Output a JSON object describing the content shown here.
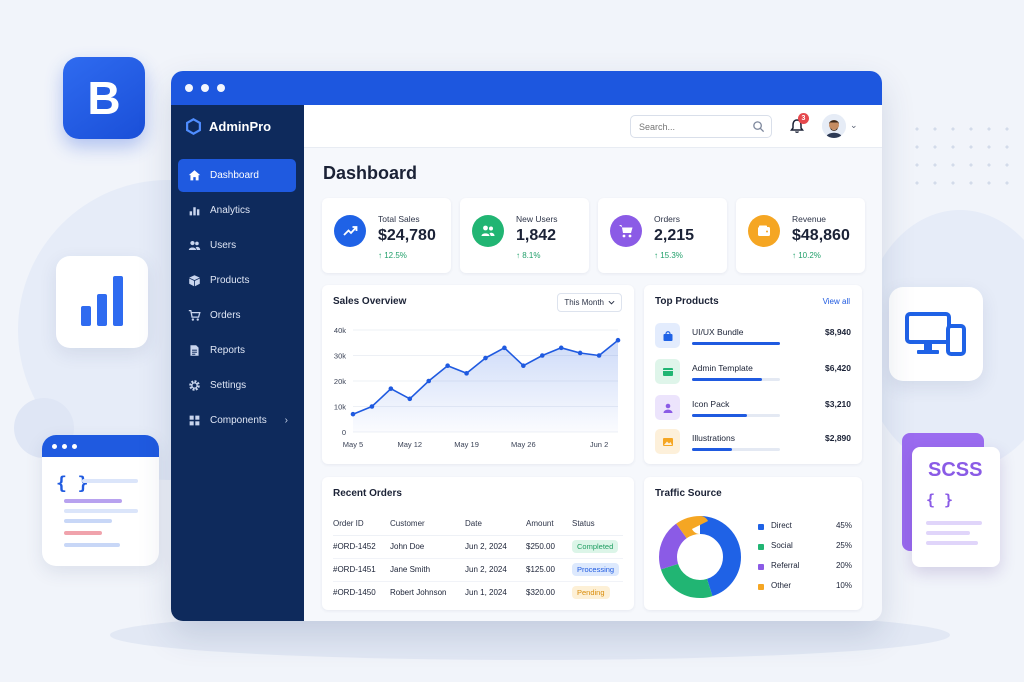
{
  "app": {
    "name": "AdminPro"
  },
  "decor": {
    "bootstrap_letter": "B",
    "scss_label": "SCSS",
    "braces": "{ }"
  },
  "sidebar": {
    "items": [
      {
        "label": "Dashboard",
        "icon": "home-icon",
        "active": true
      },
      {
        "label": "Analytics",
        "icon": "bar-chart-icon"
      },
      {
        "label": "Users",
        "icon": "users-icon"
      },
      {
        "label": "Products",
        "icon": "box-icon"
      },
      {
        "label": "Orders",
        "icon": "cart-icon"
      },
      {
        "label": "Reports",
        "icon": "document-icon"
      },
      {
        "label": "Settings",
        "icon": "gear-icon"
      },
      {
        "label": "Components",
        "icon": "grid-icon",
        "chevron": "›"
      }
    ]
  },
  "topbar": {
    "search_placeholder": "Search...",
    "notification_count": "3",
    "avatar_chevron": "⌄"
  },
  "page": {
    "title": "Dashboard"
  },
  "stats": [
    {
      "label": "Total Sales",
      "value": "$24,780",
      "change": "↑ 12.5%",
      "color": "#1f62e6",
      "icon": "trend-up-icon"
    },
    {
      "label": "New Users",
      "value": "1,842",
      "change": "↑ 8.1%",
      "color": "#21b573",
      "icon": "users-icon"
    },
    {
      "label": "Orders",
      "value": "2,215",
      "change": "↑ 15.3%",
      "color": "#8b5be6",
      "icon": "cart-icon"
    },
    {
      "label": "Revenue",
      "value": "$48,860",
      "change": "↑ 10.2%",
      "color": "#f5a623",
      "icon": "wallet-icon"
    }
  ],
  "sales_overview": {
    "title": "Sales Overview",
    "range_label": "This Month",
    "chart_data": {
      "type": "area",
      "title": "Sales Overview",
      "x": [
        "May 5",
        "May 8",
        "May 10",
        "May 12",
        "May 14",
        "May 17",
        "May 19",
        "May 21",
        "May 24",
        "May 26",
        "May 28",
        "May 30",
        "Jun 1",
        "Jun 2",
        "Jun 4"
      ],
      "y": [
        7000,
        10000,
        17000,
        13000,
        20000,
        26000,
        23000,
        29000,
        33000,
        26000,
        30000,
        33000,
        31000,
        30000,
        36000
      ],
      "x_tick_labels": [
        "May 5",
        "May 12",
        "May 19",
        "May 26",
        "Jun 2"
      ],
      "y_tick_labels": [
        "0",
        "10k",
        "20k",
        "30k",
        "40k"
      ],
      "ylim": [
        0,
        40000
      ],
      "grid": true,
      "color": "#1f5ae0"
    }
  },
  "top_products": {
    "title": "Top Products",
    "view_all": "View all",
    "items": [
      {
        "name": "UI/UX Bundle",
        "value": "$8,940",
        "progress": 1.0,
        "icon": "bag-icon",
        "tint": "#e3ecfd",
        "color": "#1f62e6"
      },
      {
        "name": "Admin Template",
        "value": "$6,420",
        "progress": 0.8,
        "icon": "window-icon",
        "tint": "#dff5ea",
        "color": "#21b573"
      },
      {
        "name": "Icon Pack",
        "value": "$3,210",
        "progress": 0.62,
        "icon": "users-icon",
        "tint": "#ece4fc",
        "color": "#8b5be6"
      },
      {
        "name": "Illustrations",
        "value": "$2,890",
        "progress": 0.45,
        "icon": "image-icon",
        "tint": "#fdf0da",
        "color": "#f5a623"
      }
    ]
  },
  "recent_orders": {
    "title": "Recent Orders",
    "columns": [
      "Order ID",
      "Customer",
      "Date",
      "Amount",
      "Status"
    ],
    "rows": [
      {
        "id": "#ORD-1452",
        "customer": "John Doe",
        "date": "Jun 2, 2024",
        "amount": "$250.00",
        "status": "Completed",
        "status_bg": "#dcf5e8",
        "status_fg": "#1f9d61"
      },
      {
        "id": "#ORD-1451",
        "customer": "Jane Smith",
        "date": "Jun 2, 2024",
        "amount": "$125.00",
        "status": "Processing",
        "status_bg": "#dde9fd",
        "status_fg": "#1f5ae0"
      },
      {
        "id": "#ORD-1450",
        "customer": "Robert Johnson",
        "date": "Jun 1, 2024",
        "amount": "$320.00",
        "status": "Pending",
        "status_bg": "#fdf0d6",
        "status_fg": "#d98c0b"
      }
    ]
  },
  "traffic_source": {
    "title": "Traffic Source",
    "chart_data": {
      "type": "pie",
      "donut": true,
      "labels": [
        "Direct",
        "Social",
        "Referral",
        "Other"
      ],
      "values": [
        45,
        25,
        20,
        10
      ],
      "value_labels": [
        "45%",
        "25%",
        "20%",
        "10%"
      ],
      "colors": [
        "#1f62e6",
        "#21b573",
        "#8b5be6",
        "#f5a623"
      ],
      "legend": "right"
    }
  }
}
